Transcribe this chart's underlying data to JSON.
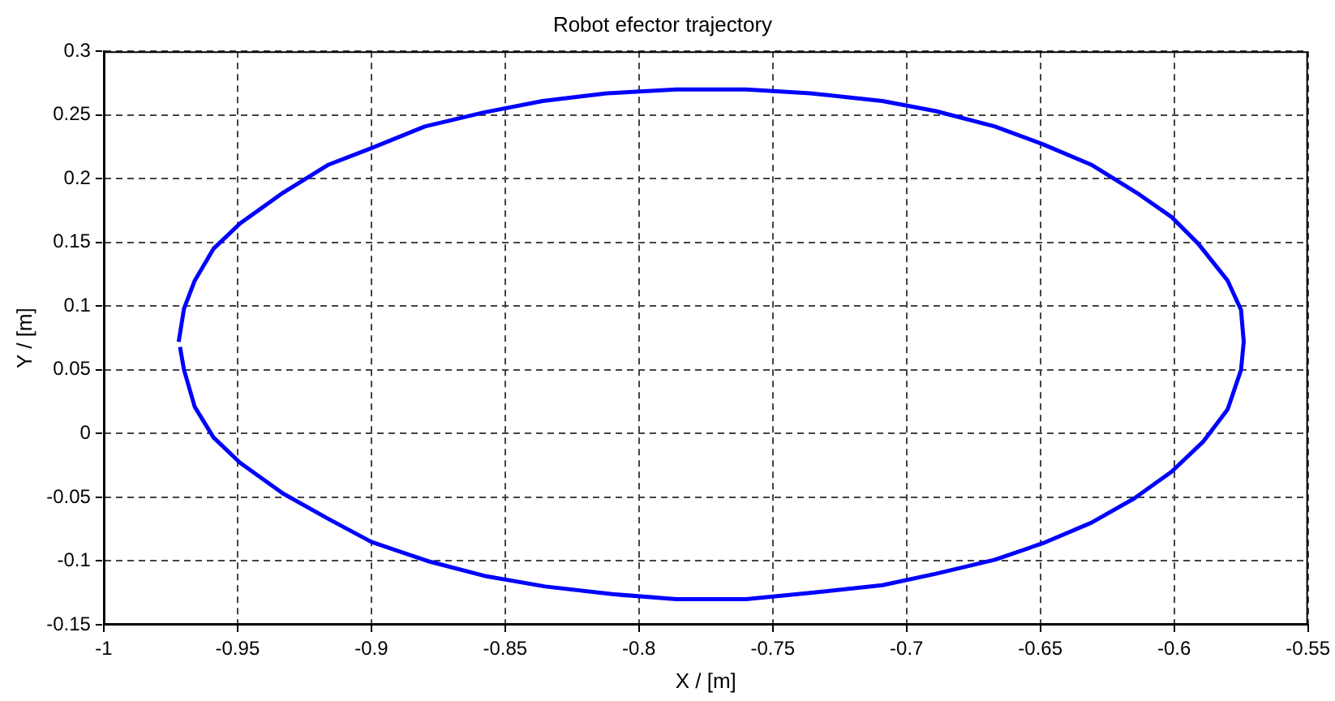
{
  "chart_data": {
    "type": "line",
    "title": "Robot efector trajectory",
    "xlabel": "X / [m]",
    "ylabel": "Y / [m]",
    "xlim": [
      -1,
      -0.55
    ],
    "xticks": [
      -1,
      -0.95,
      -0.9,
      -0.85,
      -0.8,
      -0.75,
      -0.7,
      -0.65,
      -0.6,
      -0.55
    ],
    "ylim": [
      -0.15,
      0.3
    ],
    "yticks": [
      -0.15,
      -0.1,
      -0.05,
      0,
      0.05,
      0.1,
      0.15,
      0.2,
      0.25,
      0.3
    ],
    "grid": true,
    "legend": false,
    "marker": "none",
    "line_style": "solid",
    "series": [
      {
        "color": "#0000ff",
        "x": [
          -0.972,
          -0.97,
          -0.966,
          -0.959,
          -0.949,
          -0.933,
          -0.916,
          -0.9,
          -0.88,
          -0.858,
          -0.836,
          -0.812,
          -0.786,
          -0.76,
          -0.736,
          -0.709,
          -0.689,
          -0.667,
          -0.649,
          -0.631,
          -0.614,
          -0.601,
          -0.591,
          -0.58,
          -0.575,
          -0.574,
          -0.575,
          -0.58,
          -0.589,
          -0.601,
          -0.615,
          -0.631,
          -0.649,
          -0.667,
          -0.689,
          -0.709,
          -0.736,
          -0.76,
          -0.786,
          -0.81,
          -0.835,
          -0.857,
          -0.879,
          -0.9,
          -0.916,
          -0.933,
          -0.949,
          -0.959,
          -0.966,
          -0.97,
          -0.9715
        ],
        "values": [
          0.072,
          0.098,
          0.12,
          0.145,
          0.165,
          0.189,
          0.211,
          0.224,
          0.241,
          0.252,
          0.261,
          0.267,
          0.27,
          0.27,
          0.267,
          0.261,
          0.253,
          0.241,
          0.227,
          0.211,
          0.189,
          0.17,
          0.149,
          0.12,
          0.097,
          0.072,
          0.05,
          0.019,
          -0.006,
          -0.03,
          -0.051,
          -0.07,
          -0.086,
          -0.099,
          -0.11,
          -0.119,
          -0.125,
          -0.13,
          -0.13,
          -0.126,
          -0.12,
          -0.112,
          -0.1,
          -0.085,
          -0.067,
          -0.047,
          -0.023,
          -0.003,
          0.021,
          0.05,
          0.068
        ]
      }
    ]
  }
}
